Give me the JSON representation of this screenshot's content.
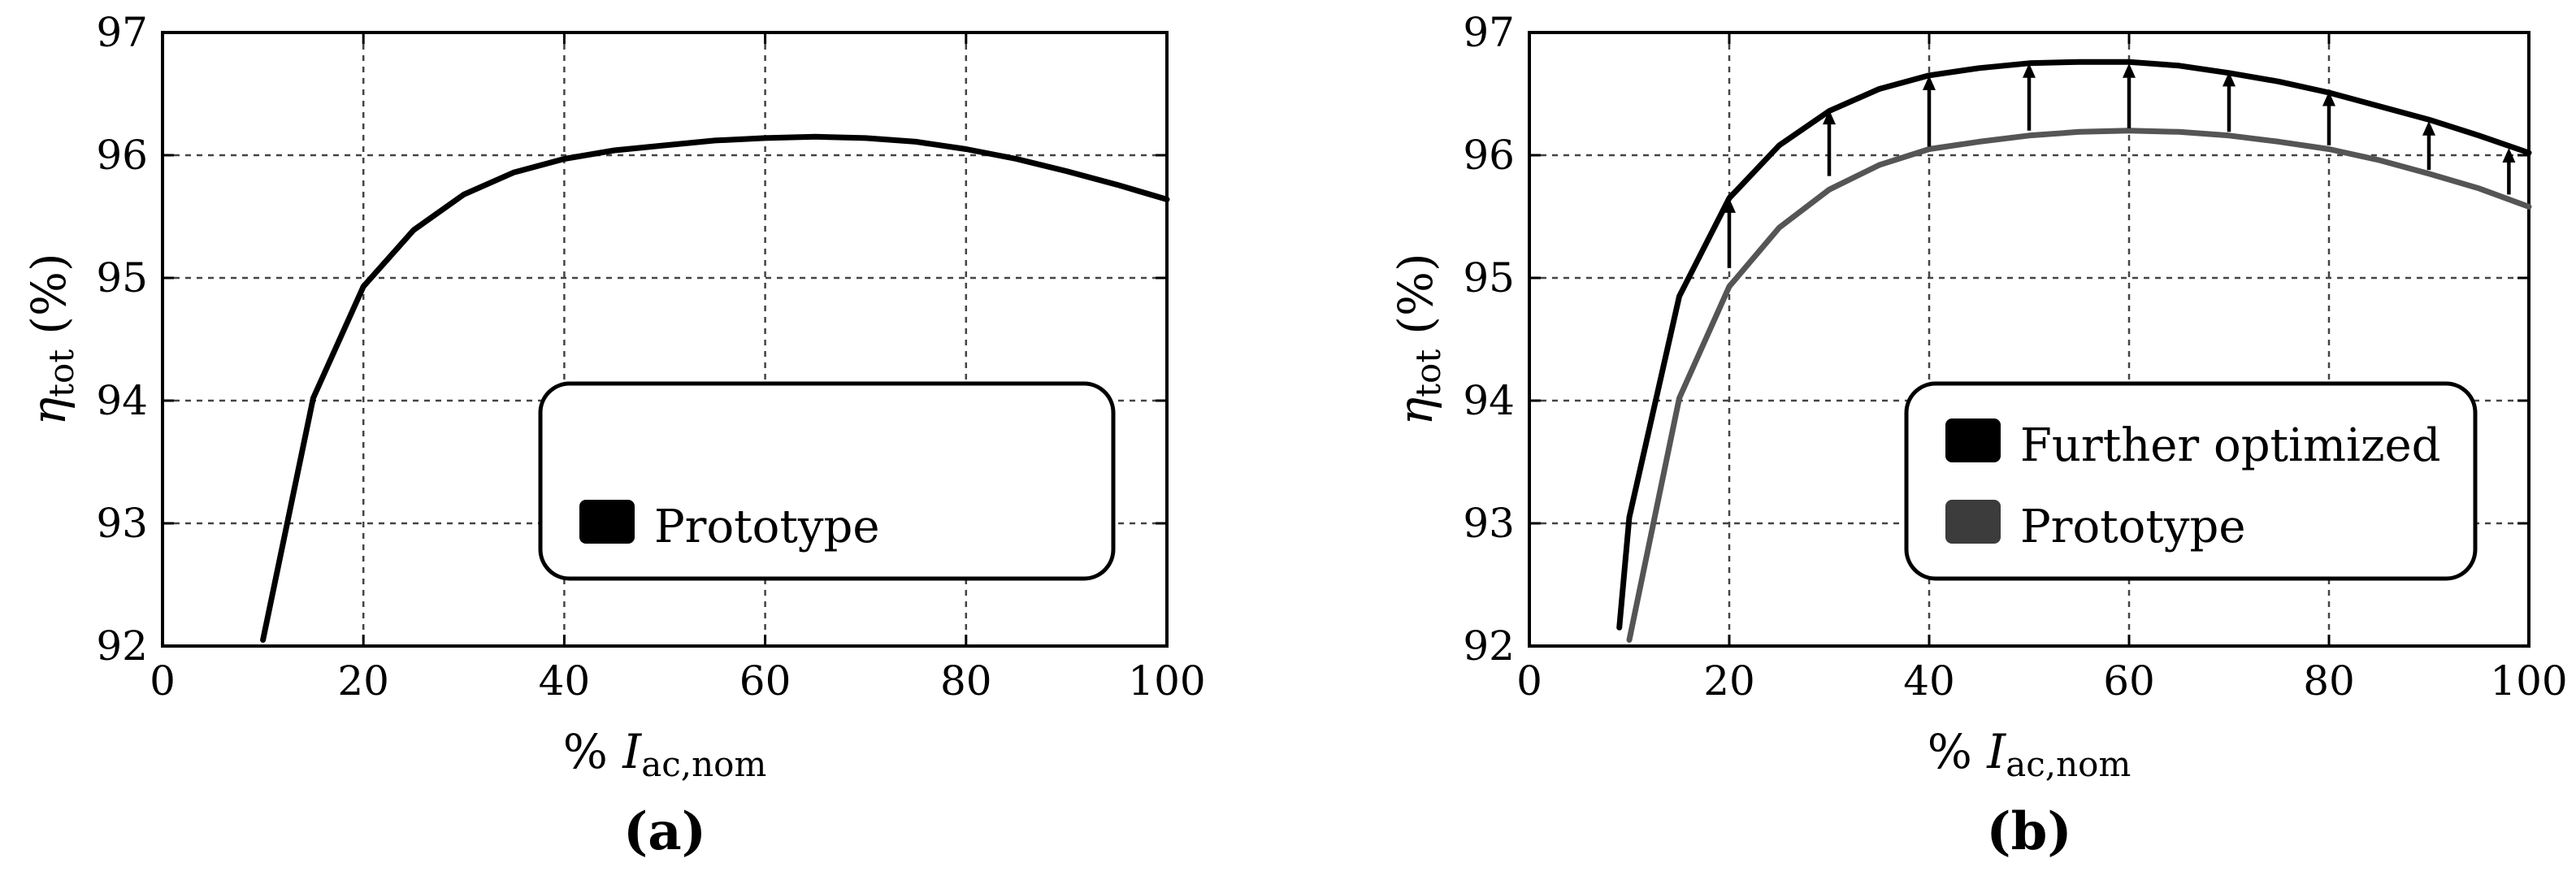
{
  "chart_data": [
    {
      "type": "line",
      "panel_label": "(a)",
      "xlabel": {
        "prefix": "% ",
        "var": "I",
        "sub": "ac,nom"
      },
      "ylabel": {
        "var": "η",
        "sub": "tot",
        "unit": "(%)"
      },
      "xlim": [
        0,
        100
      ],
      "ylim": [
        92,
        97
      ],
      "xticks": [
        0,
        20,
        40,
        60,
        80,
        100
      ],
      "yticks": [
        92,
        93,
        94,
        95,
        96,
        97
      ],
      "grid": true,
      "legend_position": "lower-right",
      "series": [
        {
          "name": "Prototype",
          "color": "#000000",
          "x": [
            10,
            15,
            20,
            25,
            30,
            35,
            40,
            45,
            50,
            55,
            60,
            65,
            70,
            75,
            80,
            85,
            90,
            95,
            100
          ],
          "y": [
            92.05,
            94.02,
            94.93,
            95.39,
            95.68,
            95.86,
            95.97,
            96.04,
            96.08,
            96.12,
            96.14,
            96.15,
            96.14,
            96.11,
            96.05,
            95.97,
            95.87,
            95.76,
            95.64
          ]
        }
      ]
    },
    {
      "type": "line",
      "panel_label": "(b)",
      "xlabel": {
        "prefix": "% ",
        "var": "I",
        "sub": "ac,nom"
      },
      "ylabel": {
        "var": "η",
        "sub": "tot",
        "unit": "(%)"
      },
      "xlim": [
        0,
        100
      ],
      "ylim": [
        92,
        97
      ],
      "xticks": [
        0,
        20,
        40,
        60,
        80,
        100
      ],
      "yticks": [
        92,
        93,
        94,
        95,
        96,
        97
      ],
      "grid": true,
      "legend_position": "lower-right",
      "series": [
        {
          "name": "Further optimized",
          "color": "#000000",
          "x": [
            9,
            10,
            15,
            20,
            25,
            30,
            35,
            40,
            45,
            50,
            55,
            60,
            65,
            70,
            75,
            80,
            85,
            90,
            95,
            100
          ],
          "y": [
            92.15,
            93.05,
            94.85,
            95.65,
            96.08,
            96.36,
            96.54,
            96.65,
            96.71,
            96.75,
            96.76,
            96.76,
            96.73,
            96.67,
            96.6,
            96.51,
            96.4,
            96.29,
            96.16,
            96.02
          ]
        },
        {
          "name": "Prototype",
          "color": "#555555",
          "x": [
            10,
            15,
            20,
            25,
            30,
            35,
            40,
            45,
            50,
            55,
            60,
            65,
            70,
            75,
            80,
            85,
            90,
            95,
            100
          ],
          "y": [
            92.05,
            94.02,
            94.93,
            95.41,
            95.72,
            95.92,
            96.05,
            96.11,
            96.16,
            96.19,
            96.2,
            96.19,
            96.16,
            96.11,
            96.05,
            95.96,
            95.85,
            95.73,
            95.58
          ]
        }
      ],
      "annotations": {
        "type": "improvement-arrows",
        "x": [
          20,
          30,
          40,
          50,
          60,
          70,
          80,
          90,
          98
        ],
        "from": [
          95.08,
          95.83,
          96.07,
          96.2,
          96.22,
          96.19,
          96.08,
          95.88,
          95.68
        ],
        "to": [
          95.65,
          96.37,
          96.65,
          96.75,
          96.75,
          96.68,
          96.52,
          96.28,
          96.06
        ]
      }
    }
  ]
}
